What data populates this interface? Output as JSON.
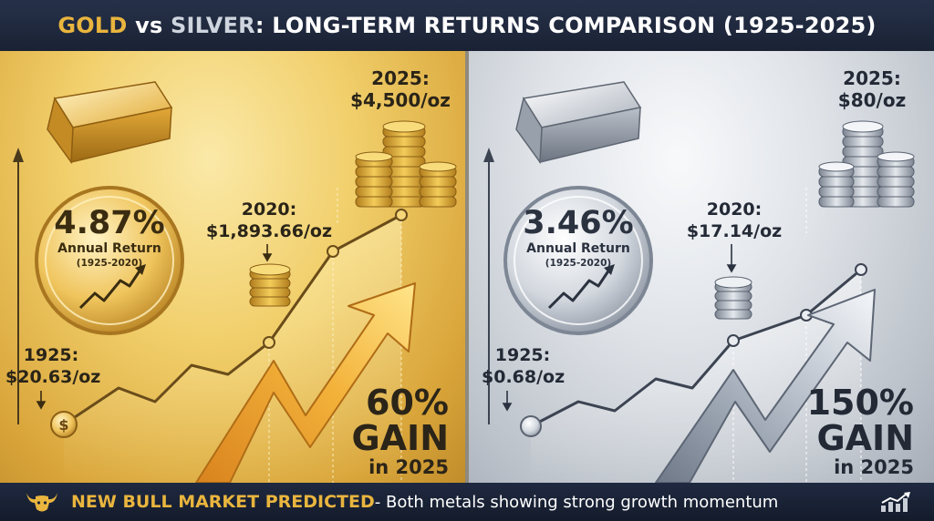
{
  "header": {
    "title_gold": "GOLD",
    "title_vs": "vs",
    "title_silver": "SILVER",
    "title_rest": ": LONG-TERM RETURNS COMPARISON (1925-2025)"
  },
  "gold": {
    "annual_return": "4.87%",
    "annual_return_label": "Annual Return",
    "annual_return_period": "(1925-2020)",
    "price_1925_year": "1925:",
    "price_1925_value": "$20.63/oz",
    "price_2020_year": "2020:",
    "price_2020_value": "$1,893.66/oz",
    "price_2025_year": "2025:",
    "price_2025_value": "$4,500/oz",
    "gain_percent": "60%",
    "gain_word": "GAIN",
    "gain_year": "in 2025"
  },
  "silver": {
    "annual_return": "3.46%",
    "annual_return_label": "Annual Return",
    "annual_return_period": "(1925-2020)",
    "price_1925_year": "1925:",
    "price_1925_value": "$0.68/oz",
    "price_2020_year": "2020:",
    "price_2020_value": "$17.14/oz",
    "price_2025_year": "2025:",
    "price_2025_value": "$80/oz",
    "gain_percent": "150%",
    "gain_word": "GAIN",
    "gain_year": "in 2025"
  },
  "footer": {
    "highlight": "NEW BULL MARKET PREDICTED",
    "message": " - Both metals showing strong growth momentum"
  },
  "icons": {
    "bull": "bull-icon",
    "trend": "trend-chart-icon",
    "bar": "metal-bar-icon",
    "coins": "coin-stack-icon",
    "arrow": "up-arrow-icon"
  },
  "colors": {
    "gold_accent": "#e9b53e",
    "silver_accent": "#cfd5de",
    "navy": "#1b2436"
  }
}
